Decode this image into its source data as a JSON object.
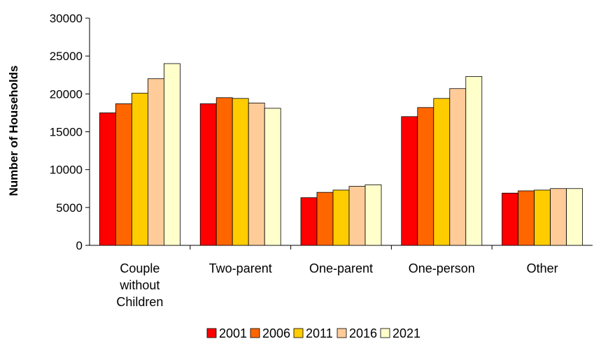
{
  "chart_data": {
    "type": "bar",
    "title": "",
    "xlabel": "",
    "ylabel": "Number of Households",
    "ylim": [
      0,
      30000
    ],
    "yticks": [
      "0",
      "5000",
      "10000",
      "15000",
      "20000",
      "25000",
      "30000"
    ],
    "grid": false,
    "legend_position": "bottom",
    "categories": [
      [
        "Couple",
        "without",
        "Children"
      ],
      [
        "Two-parent"
      ],
      [
        "One-parent"
      ],
      [
        "One-person"
      ],
      [
        "Other"
      ]
    ],
    "series": [
      {
        "name": "2001",
        "color": "#ff0000",
        "values": [
          17500,
          18700,
          6300,
          17000,
          6900
        ]
      },
      {
        "name": "2006",
        "color": "#ff6600",
        "values": [
          18700,
          19500,
          7000,
          18200,
          7200
        ]
      },
      {
        "name": "2011",
        "color": "#ffcc00",
        "values": [
          20100,
          19400,
          7300,
          19400,
          7300
        ]
      },
      {
        "name": "2016",
        "color": "#ffcc99",
        "values": [
          22000,
          18800,
          7800,
          20700,
          7500
        ]
      },
      {
        "name": "2021",
        "color": "#ffffcc",
        "values": [
          24000,
          18100,
          8000,
          22300,
          7500
        ]
      }
    ]
  }
}
